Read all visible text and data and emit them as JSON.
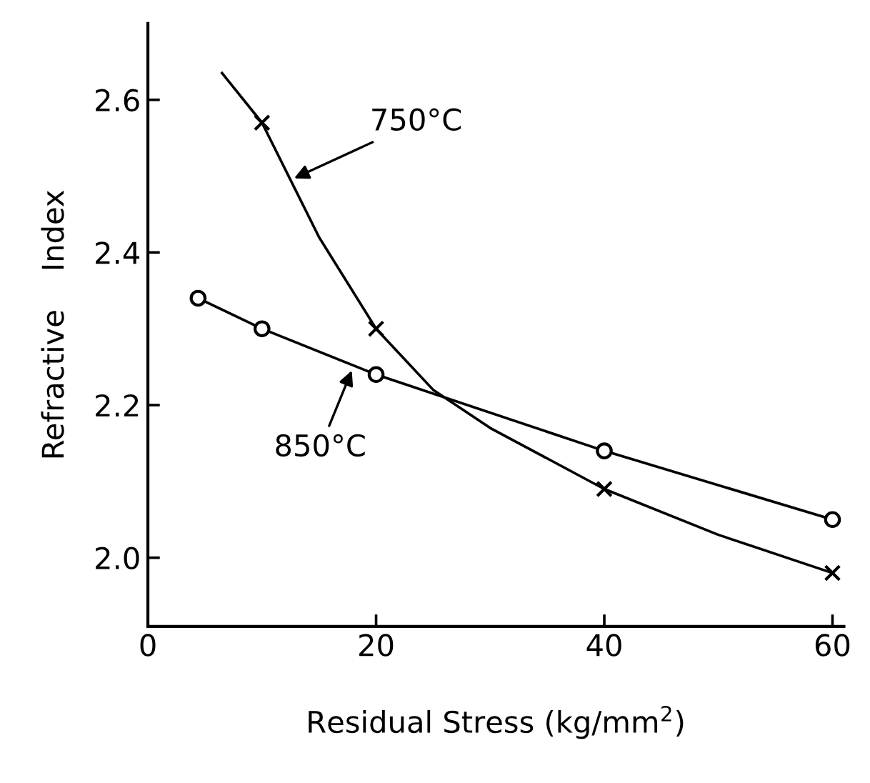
{
  "chart_data": {
    "type": "line",
    "xlabel": "Residual Stress (kg/mm$^{2}$)",
    "ylabel": "Refractive    Index",
    "xlim": [
      0,
      61
    ],
    "ylim": [
      1.91,
      2.7
    ],
    "xticks": [
      0,
      20,
      40,
      60
    ],
    "yticks": [
      {
        "value": 2.0,
        "label": "2.0"
      },
      2.2,
      2.4,
      2.6
    ],
    "grid": false,
    "legend": false,
    "series": [
      {
        "type": "line",
        "color": "#000000",
        "marker": "none",
        "x": [
          6.5,
          10,
          15,
          20,
          25,
          30,
          40,
          50,
          60
        ],
        "values": [
          2.635,
          2.57,
          2.42,
          2.3,
          2.22,
          2.17,
          2.09,
          2.03,
          1.98
        ]
      },
      {
        "type": "scatter",
        "color": "#000000",
        "marker": "cross",
        "x": [
          10,
          20,
          40,
          60
        ],
        "values": [
          2.57,
          2.3,
          2.09,
          1.98
        ]
      },
      {
        "type": "line",
        "color": "#000000",
        "marker": "circle",
        "x": [
          4.4,
          10,
          20,
          40,
          60
        ],
        "values": [
          2.34,
          2.3,
          2.24,
          2.14,
          2.05
        ]
      }
    ],
    "annotations": [
      {
        "text": "750°C",
        "x": 12.5,
        "y": 2.495
      },
      {
        "text": "850°C",
        "x": 18,
        "y": 2.25
      }
    ]
  }
}
